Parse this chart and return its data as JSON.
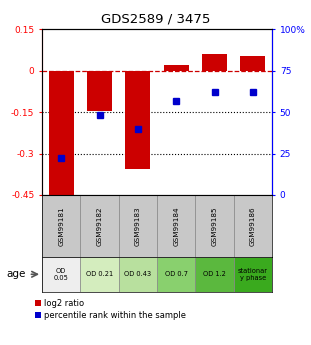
{
  "title": "GDS2589 / 3475",
  "samples": [
    "GSM99181",
    "GSM99182",
    "GSM99183",
    "GSM99184",
    "GSM99185",
    "GSM99186"
  ],
  "log2_ratio": [
    -0.47,
    -0.145,
    -0.355,
    0.02,
    0.06,
    0.055
  ],
  "percentile_rank": [
    22,
    48,
    40,
    57,
    62,
    62
  ],
  "bar_color": "#cc0000",
  "dot_color": "#0000cc",
  "ylim_left": [
    -0.45,
    0.15
  ],
  "ylim_right": [
    0,
    100
  ],
  "yticks_left": [
    0.15,
    0.0,
    -0.15,
    -0.3,
    -0.45
  ],
  "ytick_labels_left": [
    "0.15",
    "0",
    "-0.15",
    "-0.3",
    "-0.45"
  ],
  "yticks_right": [
    100,
    75,
    50,
    25,
    0
  ],
  "ytick_labels_right": [
    "100%",
    "75",
    "50",
    "25",
    "0"
  ],
  "age_labels": [
    "OD\n0.05",
    "OD 0.21",
    "OD 0.43",
    "OD 0.7",
    "OD 1.2",
    "stationar\ny phase"
  ],
  "age_colors": [
    "#eeeeee",
    "#d4edbe",
    "#b8e09e",
    "#89d06e",
    "#5bb83e",
    "#3aaa1e"
  ],
  "legend_red": "log2 ratio",
  "legend_blue": "percentile rank within the sample",
  "age_label": "age"
}
